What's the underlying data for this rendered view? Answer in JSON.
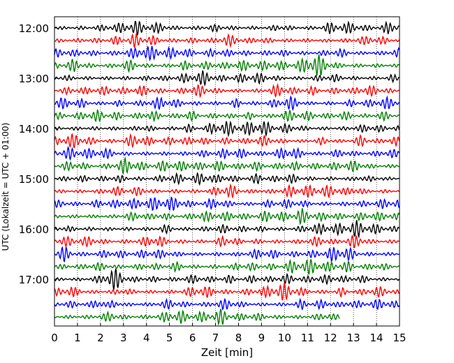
{
  "chart_data": {
    "type": "line",
    "title": "",
    "xlabel": "Zeit  [min]",
    "ylabel": "UTC (Lokalzeit = UTC + 01:00)",
    "xlim": [
      0,
      15
    ],
    "x_ticks": [
      0,
      1,
      2,
      3,
      4,
      5,
      6,
      7,
      8,
      9,
      10,
      11,
      12,
      13,
      14,
      15
    ],
    "y_ticks": [
      "12:00",
      "13:00",
      "14:00",
      "15:00",
      "16:00",
      "17:00"
    ],
    "vertical_grid": "dotted",
    "trace_interval_minutes": 15,
    "start_time": "12:00",
    "colors": [
      "#000000",
      "#ff0000",
      "#0000ff",
      "#008000"
    ],
    "traces": [
      {
        "start": "12:00",
        "color": "#000000",
        "end_min": 15
      },
      {
        "start": "12:15",
        "color": "#ff0000",
        "end_min": 15
      },
      {
        "start": "12:30",
        "color": "#0000ff",
        "end_min": 15
      },
      {
        "start": "12:45",
        "color": "#008000",
        "end_min": 15
      },
      {
        "start": "13:00",
        "color": "#000000",
        "end_min": 15
      },
      {
        "start": "13:15",
        "color": "#ff0000",
        "end_min": 15
      },
      {
        "start": "13:30",
        "color": "#0000ff",
        "end_min": 15
      },
      {
        "start": "13:45",
        "color": "#008000",
        "end_min": 15
      },
      {
        "start": "14:00",
        "color": "#000000",
        "end_min": 15
      },
      {
        "start": "14:15",
        "color": "#ff0000",
        "end_min": 15
      },
      {
        "start": "14:30",
        "color": "#0000ff",
        "end_min": 15
      },
      {
        "start": "14:45",
        "color": "#008000",
        "end_min": 15
      },
      {
        "start": "15:00",
        "color": "#000000",
        "end_min": 15
      },
      {
        "start": "15:15",
        "color": "#ff0000",
        "end_min": 15
      },
      {
        "start": "15:30",
        "color": "#0000ff",
        "end_min": 15
      },
      {
        "start": "15:45",
        "color": "#008000",
        "end_min": 15
      },
      {
        "start": "16:00",
        "color": "#000000",
        "end_min": 15
      },
      {
        "start": "16:15",
        "color": "#ff0000",
        "end_min": 15
      },
      {
        "start": "16:30",
        "color": "#0000ff",
        "end_min": 15
      },
      {
        "start": "16:45",
        "color": "#008000",
        "end_min": 15
      },
      {
        "start": "17:00",
        "color": "#000000",
        "end_min": 15
      },
      {
        "start": "17:15",
        "color": "#ff0000",
        "end_min": 15
      },
      {
        "start": "17:30",
        "color": "#0000ff",
        "end_min": 15
      },
      {
        "start": "17:45",
        "color": "#008000",
        "end_min": 12.4
      }
    ]
  }
}
